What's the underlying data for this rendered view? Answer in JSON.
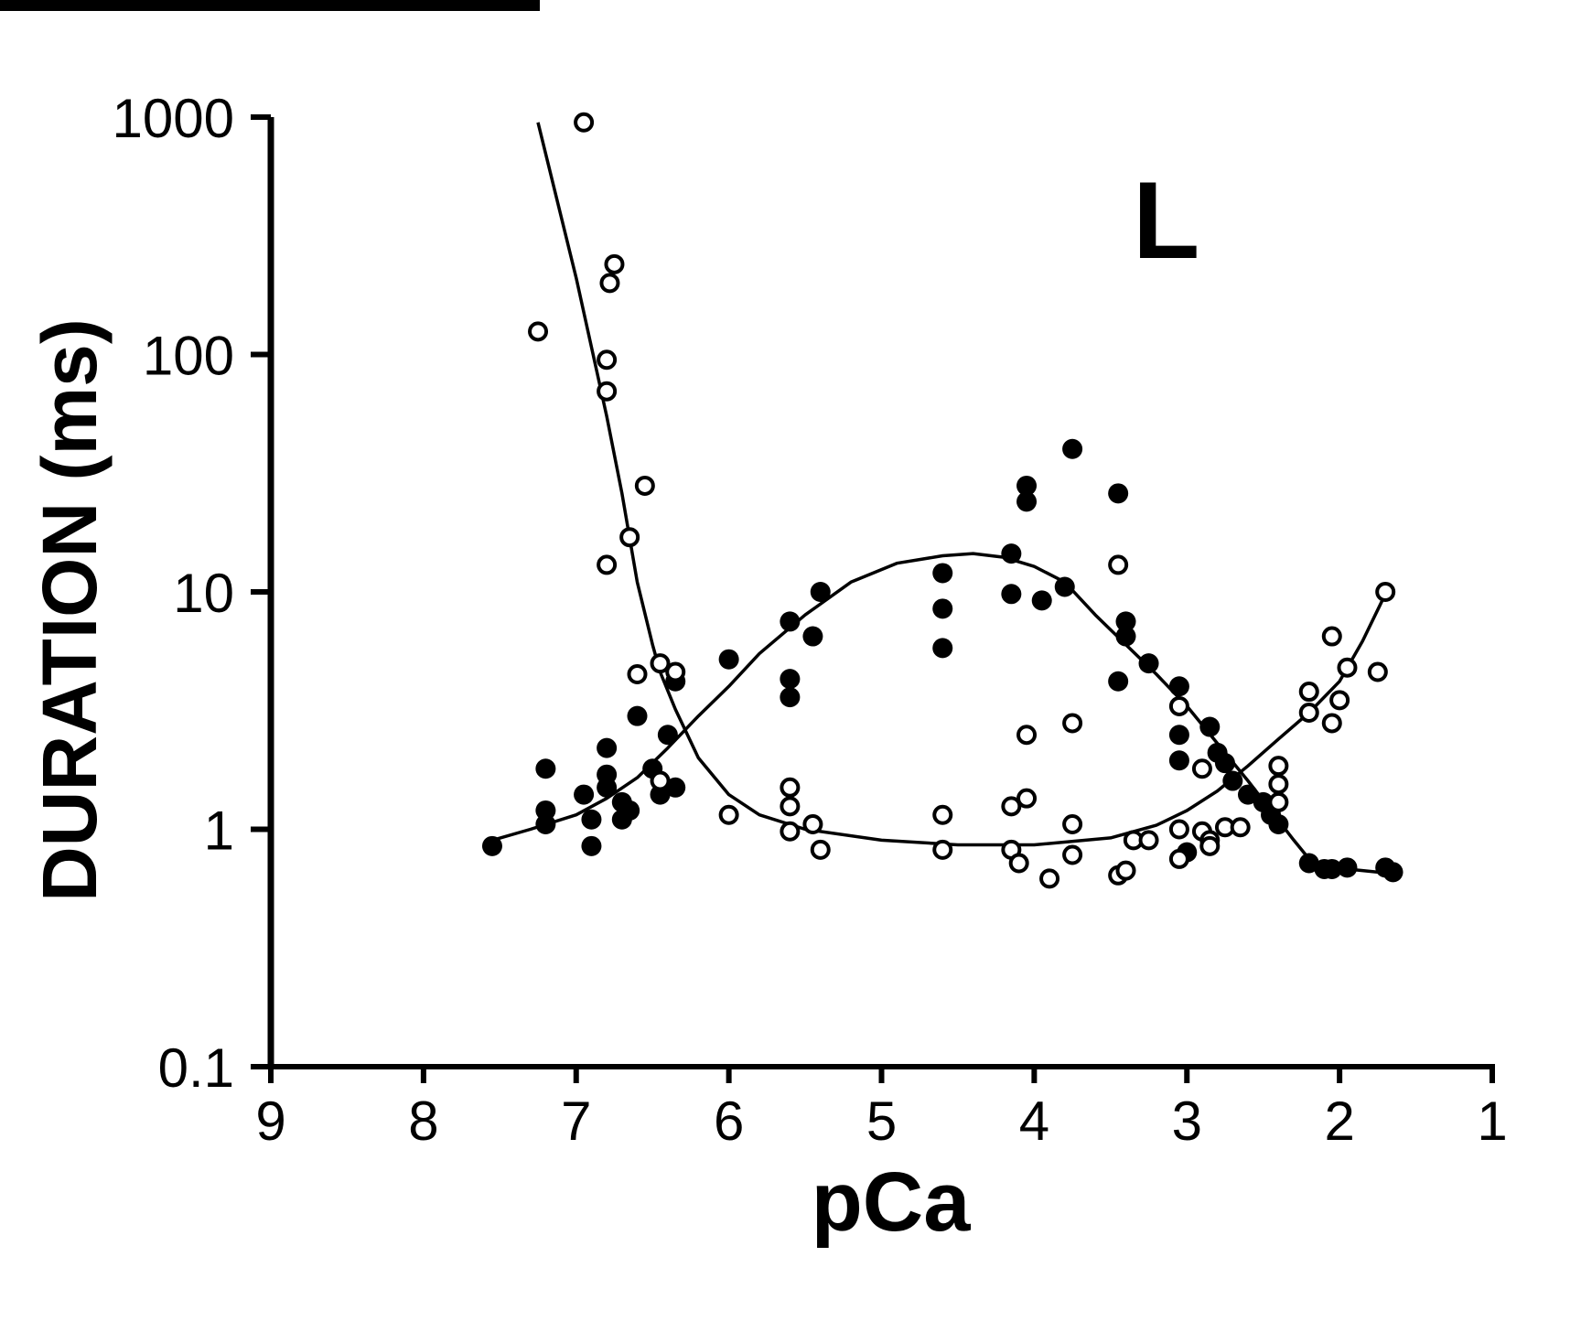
{
  "chart_data": {
    "type": "scatter",
    "title": "",
    "panel_label": "L",
    "xlabel": "pCa",
    "ylabel": "DURATION (ms)",
    "xlim": [
      9,
      1
    ],
    "x_reversed": true,
    "ylim": [
      0.1,
      1000
    ],
    "y_scale": "log",
    "x_ticks": [
      "9",
      "8",
      "7",
      "6",
      "5",
      "4",
      "3",
      "2",
      "1"
    ],
    "y_ticks": [
      "0.1",
      "1",
      "10",
      "100",
      "1000"
    ],
    "grid": false,
    "legend": "none",
    "colors": {
      "ink": "#000000",
      "background": "#ffffff"
    },
    "series": [
      {
        "marker": "filled-circle",
        "points": [
          [
            7.55,
            0.85
          ],
          [
            7.2,
            1.8
          ],
          [
            7.2,
            1.2
          ],
          [
            7.2,
            1.05
          ],
          [
            6.95,
            1.4
          ],
          [
            6.9,
            1.1
          ],
          [
            6.9,
            0.85
          ],
          [
            6.8,
            2.2
          ],
          [
            6.8,
            1.7
          ],
          [
            6.8,
            1.5
          ],
          [
            6.7,
            1.3
          ],
          [
            6.7,
            1.1
          ],
          [
            6.65,
            1.2
          ],
          [
            6.6,
            3.0
          ],
          [
            6.5,
            1.8
          ],
          [
            6.45,
            1.4
          ],
          [
            6.4,
            2.5
          ],
          [
            6.35,
            1.5
          ],
          [
            6.35,
            4.2
          ],
          [
            6.0,
            5.2
          ],
          [
            5.6,
            7.5
          ],
          [
            5.6,
            4.3
          ],
          [
            5.6,
            3.6
          ],
          [
            5.45,
            6.5
          ],
          [
            5.4,
            10.0
          ],
          [
            4.6,
            12.0
          ],
          [
            4.6,
            8.5
          ],
          [
            4.6,
            5.8
          ],
          [
            4.15,
            14.5
          ],
          [
            4.15,
            9.8
          ],
          [
            4.05,
            28.0
          ],
          [
            4.05,
            24.0
          ],
          [
            3.95,
            9.2
          ],
          [
            3.8,
            10.5
          ],
          [
            3.75,
            40.0
          ],
          [
            3.45,
            26.0
          ],
          [
            3.45,
            4.2
          ],
          [
            3.4,
            7.5
          ],
          [
            3.4,
            6.5
          ],
          [
            3.25,
            5.0
          ],
          [
            3.05,
            4.0
          ],
          [
            3.05,
            2.5
          ],
          [
            3.05,
            1.95
          ],
          [
            3.0,
            0.8
          ],
          [
            2.85,
            2.7
          ],
          [
            2.8,
            2.1
          ],
          [
            2.75,
            1.9
          ],
          [
            2.7,
            1.6
          ],
          [
            2.6,
            1.4
          ],
          [
            2.5,
            1.3
          ],
          [
            2.45,
            1.15
          ],
          [
            2.4,
            1.05
          ],
          [
            2.2,
            0.72
          ],
          [
            2.1,
            0.68
          ],
          [
            2.05,
            0.68
          ],
          [
            1.95,
            0.69
          ],
          [
            1.7,
            0.69
          ],
          [
            1.65,
            0.66
          ]
        ]
      },
      {
        "marker": "open-circle",
        "points": [
          [
            6.95,
            950.0
          ],
          [
            7.25,
            125.0
          ],
          [
            6.75,
            240.0
          ],
          [
            6.78,
            200.0
          ],
          [
            6.8,
            95.0
          ],
          [
            6.8,
            70.0
          ],
          [
            6.55,
            28.0
          ],
          [
            6.65,
            17.0
          ],
          [
            6.8,
            13.0
          ],
          [
            6.6,
            4.5
          ],
          [
            6.45,
            5.0
          ],
          [
            6.35,
            4.6
          ],
          [
            6.45,
            1.6
          ],
          [
            6.0,
            1.15
          ],
          [
            5.6,
            1.5
          ],
          [
            5.6,
            1.25
          ],
          [
            5.6,
            0.98
          ],
          [
            5.45,
            1.05
          ],
          [
            5.4,
            0.82
          ],
          [
            4.6,
            1.15
          ],
          [
            4.6,
            0.82
          ],
          [
            4.15,
            1.25
          ],
          [
            4.05,
            1.35
          ],
          [
            4.05,
            2.5
          ],
          [
            4.15,
            0.82
          ],
          [
            4.1,
            0.72
          ],
          [
            3.9,
            0.62
          ],
          [
            3.75,
            2.8
          ],
          [
            3.75,
            1.05
          ],
          [
            3.75,
            0.78
          ],
          [
            3.45,
            13.0
          ],
          [
            3.45,
            0.64
          ],
          [
            3.4,
            0.67
          ],
          [
            3.35,
            0.9
          ],
          [
            3.25,
            0.9
          ],
          [
            3.05,
            3.3
          ],
          [
            3.05,
            1.0
          ],
          [
            3.05,
            0.75
          ],
          [
            2.9,
            1.8
          ],
          [
            2.9,
            0.98
          ],
          [
            2.85,
            0.9
          ],
          [
            2.85,
            0.85
          ],
          [
            2.75,
            1.02
          ],
          [
            2.65,
            1.02
          ],
          [
            2.4,
            1.85
          ],
          [
            2.4,
            1.55
          ],
          [
            2.4,
            1.3
          ],
          [
            2.2,
            3.8
          ],
          [
            2.2,
            3.1
          ],
          [
            2.05,
            6.5
          ],
          [
            2.05,
            2.8
          ],
          [
            2.0,
            3.5
          ],
          [
            1.95,
            4.8
          ],
          [
            1.75,
            4.6
          ],
          [
            1.7,
            10.0
          ]
        ]
      }
    ],
    "fit_curves": [
      {
        "name": "",
        "points": [
          [
            7.25,
            950.0
          ],
          [
            7.0,
            210.0
          ],
          [
            6.8,
            55.0
          ],
          [
            6.7,
            26.0
          ],
          [
            6.6,
            11.0
          ],
          [
            6.5,
            6.0
          ],
          [
            6.45,
            4.6
          ],
          [
            6.35,
            3.2
          ],
          [
            6.2,
            2.0
          ],
          [
            6.0,
            1.4
          ],
          [
            5.8,
            1.15
          ],
          [
            5.5,
            1.0
          ],
          [
            5.0,
            0.9
          ],
          [
            4.5,
            0.86
          ],
          [
            4.0,
            0.86
          ],
          [
            3.5,
            0.92
          ],
          [
            3.2,
            1.04
          ],
          [
            3.0,
            1.2
          ],
          [
            2.8,
            1.45
          ],
          [
            2.6,
            1.85
          ],
          [
            2.4,
            2.4
          ],
          [
            2.2,
            3.1
          ],
          [
            2.0,
            4.2
          ],
          [
            1.85,
            6.2
          ],
          [
            1.7,
            9.8
          ]
        ]
      },
      {
        "name": "",
        "points": [
          [
            7.6,
            0.88
          ],
          [
            7.3,
            1.0
          ],
          [
            7.0,
            1.15
          ],
          [
            6.8,
            1.35
          ],
          [
            6.6,
            1.65
          ],
          [
            6.4,
            2.2
          ],
          [
            6.2,
            3.0
          ],
          [
            6.0,
            4.0
          ],
          [
            5.8,
            5.5
          ],
          [
            5.5,
            8.0
          ],
          [
            5.2,
            11.0
          ],
          [
            4.9,
            13.2
          ],
          [
            4.6,
            14.2
          ],
          [
            4.4,
            14.5
          ],
          [
            4.2,
            14.0
          ],
          [
            4.0,
            12.8
          ],
          [
            3.8,
            11.0
          ],
          [
            3.6,
            8.0
          ],
          [
            3.4,
            6.0
          ],
          [
            3.2,
            4.5
          ],
          [
            3.0,
            3.3
          ],
          [
            2.8,
            2.3
          ],
          [
            2.6,
            1.6
          ],
          [
            2.45,
            1.2
          ],
          [
            2.3,
            0.9
          ],
          [
            2.2,
            0.75
          ],
          [
            2.05,
            0.69
          ],
          [
            1.85,
            0.67
          ],
          [
            1.65,
            0.65
          ]
        ]
      }
    ]
  }
}
